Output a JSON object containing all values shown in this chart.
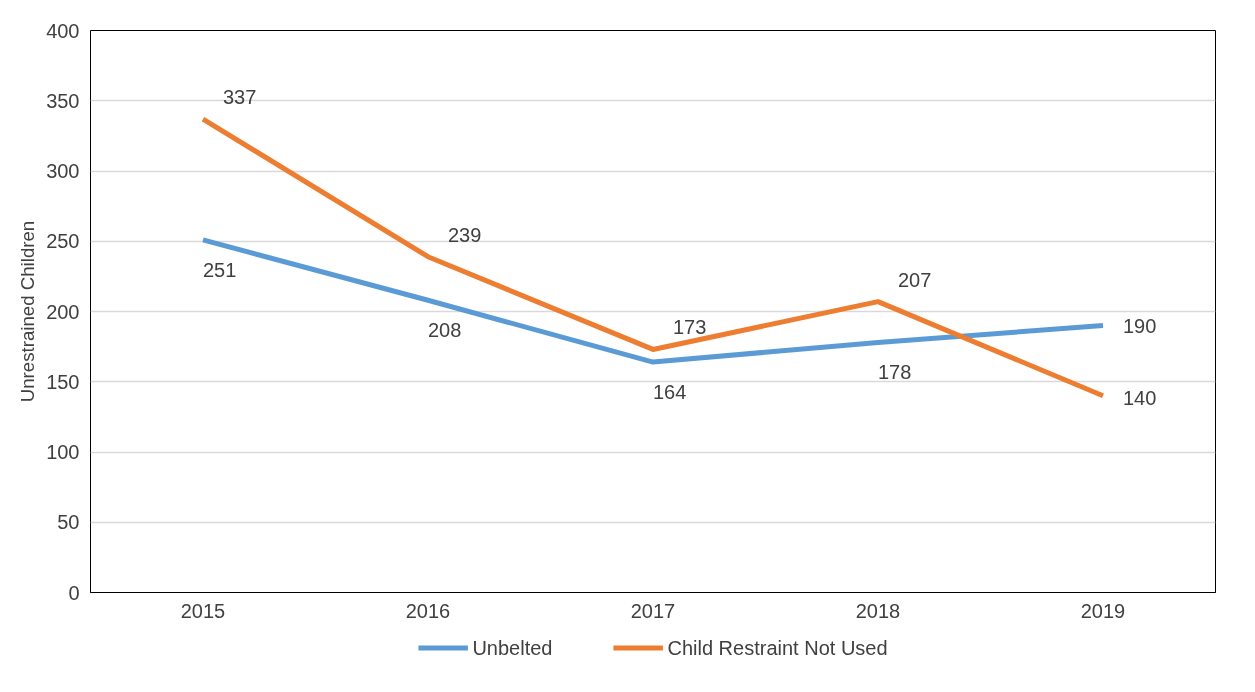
{
  "chart_data": {
    "type": "line",
    "ylabel": "Unrestrained Children",
    "categories": [
      "2015",
      "2016",
      "2017",
      "2018",
      "2019"
    ],
    "series": [
      {
        "name": "Unbelted",
        "color": "#5b9bd5",
        "values": [
          251,
          208,
          164,
          178,
          190
        ]
      },
      {
        "name": "Child Restraint Not Used",
        "color": "#ed7d31",
        "values": [
          337,
          239,
          173,
          207,
          140
        ]
      }
    ],
    "ylim": [
      0,
      400
    ],
    "yticks": [
      0,
      50,
      100,
      150,
      200,
      250,
      300,
      350,
      400
    ],
    "grid": "y",
    "legend": "bottom",
    "data_labels": true,
    "marker": "none",
    "line_style": "solid"
  }
}
